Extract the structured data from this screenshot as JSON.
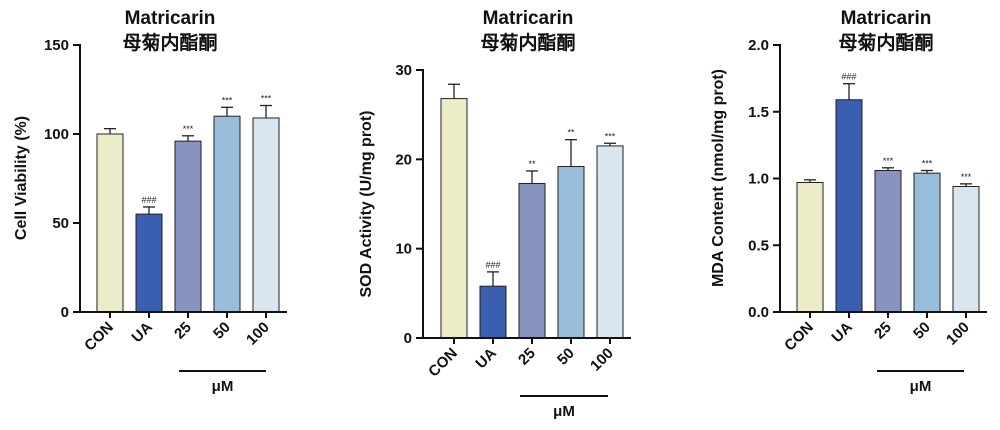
{
  "chart_data": [
    {
      "type": "bar",
      "title": "Matricarin",
      "subtitle": "母菊内酯酮",
      "ylabel": "Cell Viability (%)",
      "ylim": [
        0,
        150
      ],
      "yticks": [
        "0",
        "50",
        "100",
        "150"
      ],
      "categories": [
        "CON",
        "UA",
        "25",
        "50",
        "100"
      ],
      "values": [
        100,
        55,
        96,
        110,
        109
      ],
      "errors": [
        3,
        4,
        3,
        5,
        7
      ],
      "significance": [
        "",
        "###",
        "***",
        "***",
        "***"
      ],
      "unit_label": "μM",
      "grid": false
    },
    {
      "type": "bar",
      "title": "Matricarin",
      "subtitle": "母菊内酯酮",
      "ylabel": "SOD Activity (U/mg prot)",
      "ylim": [
        0,
        30
      ],
      "yticks": [
        "0",
        "10",
        "20",
        "30"
      ],
      "categories": [
        "CON",
        "UA",
        "25",
        "50",
        "100"
      ],
      "values": [
        26.8,
        5.8,
        17.3,
        19.2,
        21.5
      ],
      "errors": [
        1.6,
        1.6,
        1.4,
        3.0,
        0.3
      ],
      "significance": [
        "",
        "###",
        "**",
        "**",
        "***"
      ],
      "unit_label": "μM",
      "grid": false
    },
    {
      "type": "bar",
      "title": "Matricarin",
      "subtitle": "母菊内酯酮",
      "ylabel": "MDA Content (nmol/mg prot)",
      "ylim": [
        0,
        2.0
      ],
      "yticks": [
        "0.0",
        "0.5",
        "1.0",
        "1.5",
        "2.0"
      ],
      "categories": [
        "CON",
        "UA",
        "25",
        "50",
        "100"
      ],
      "values": [
        0.97,
        1.59,
        1.06,
        1.04,
        0.94
      ],
      "errors": [
        0.02,
        0.12,
        0.02,
        0.02,
        0.02
      ],
      "significance": [
        "",
        "###",
        "***",
        "***",
        "***"
      ],
      "unit_label": "μM",
      "grid": false
    }
  ],
  "colors": {
    "bars": [
      "#ECEDC8",
      "#3A5FB0",
      "#8893C0",
      "#98BDDA",
      "#D9E6F0"
    ],
    "axis": "#111111"
  }
}
